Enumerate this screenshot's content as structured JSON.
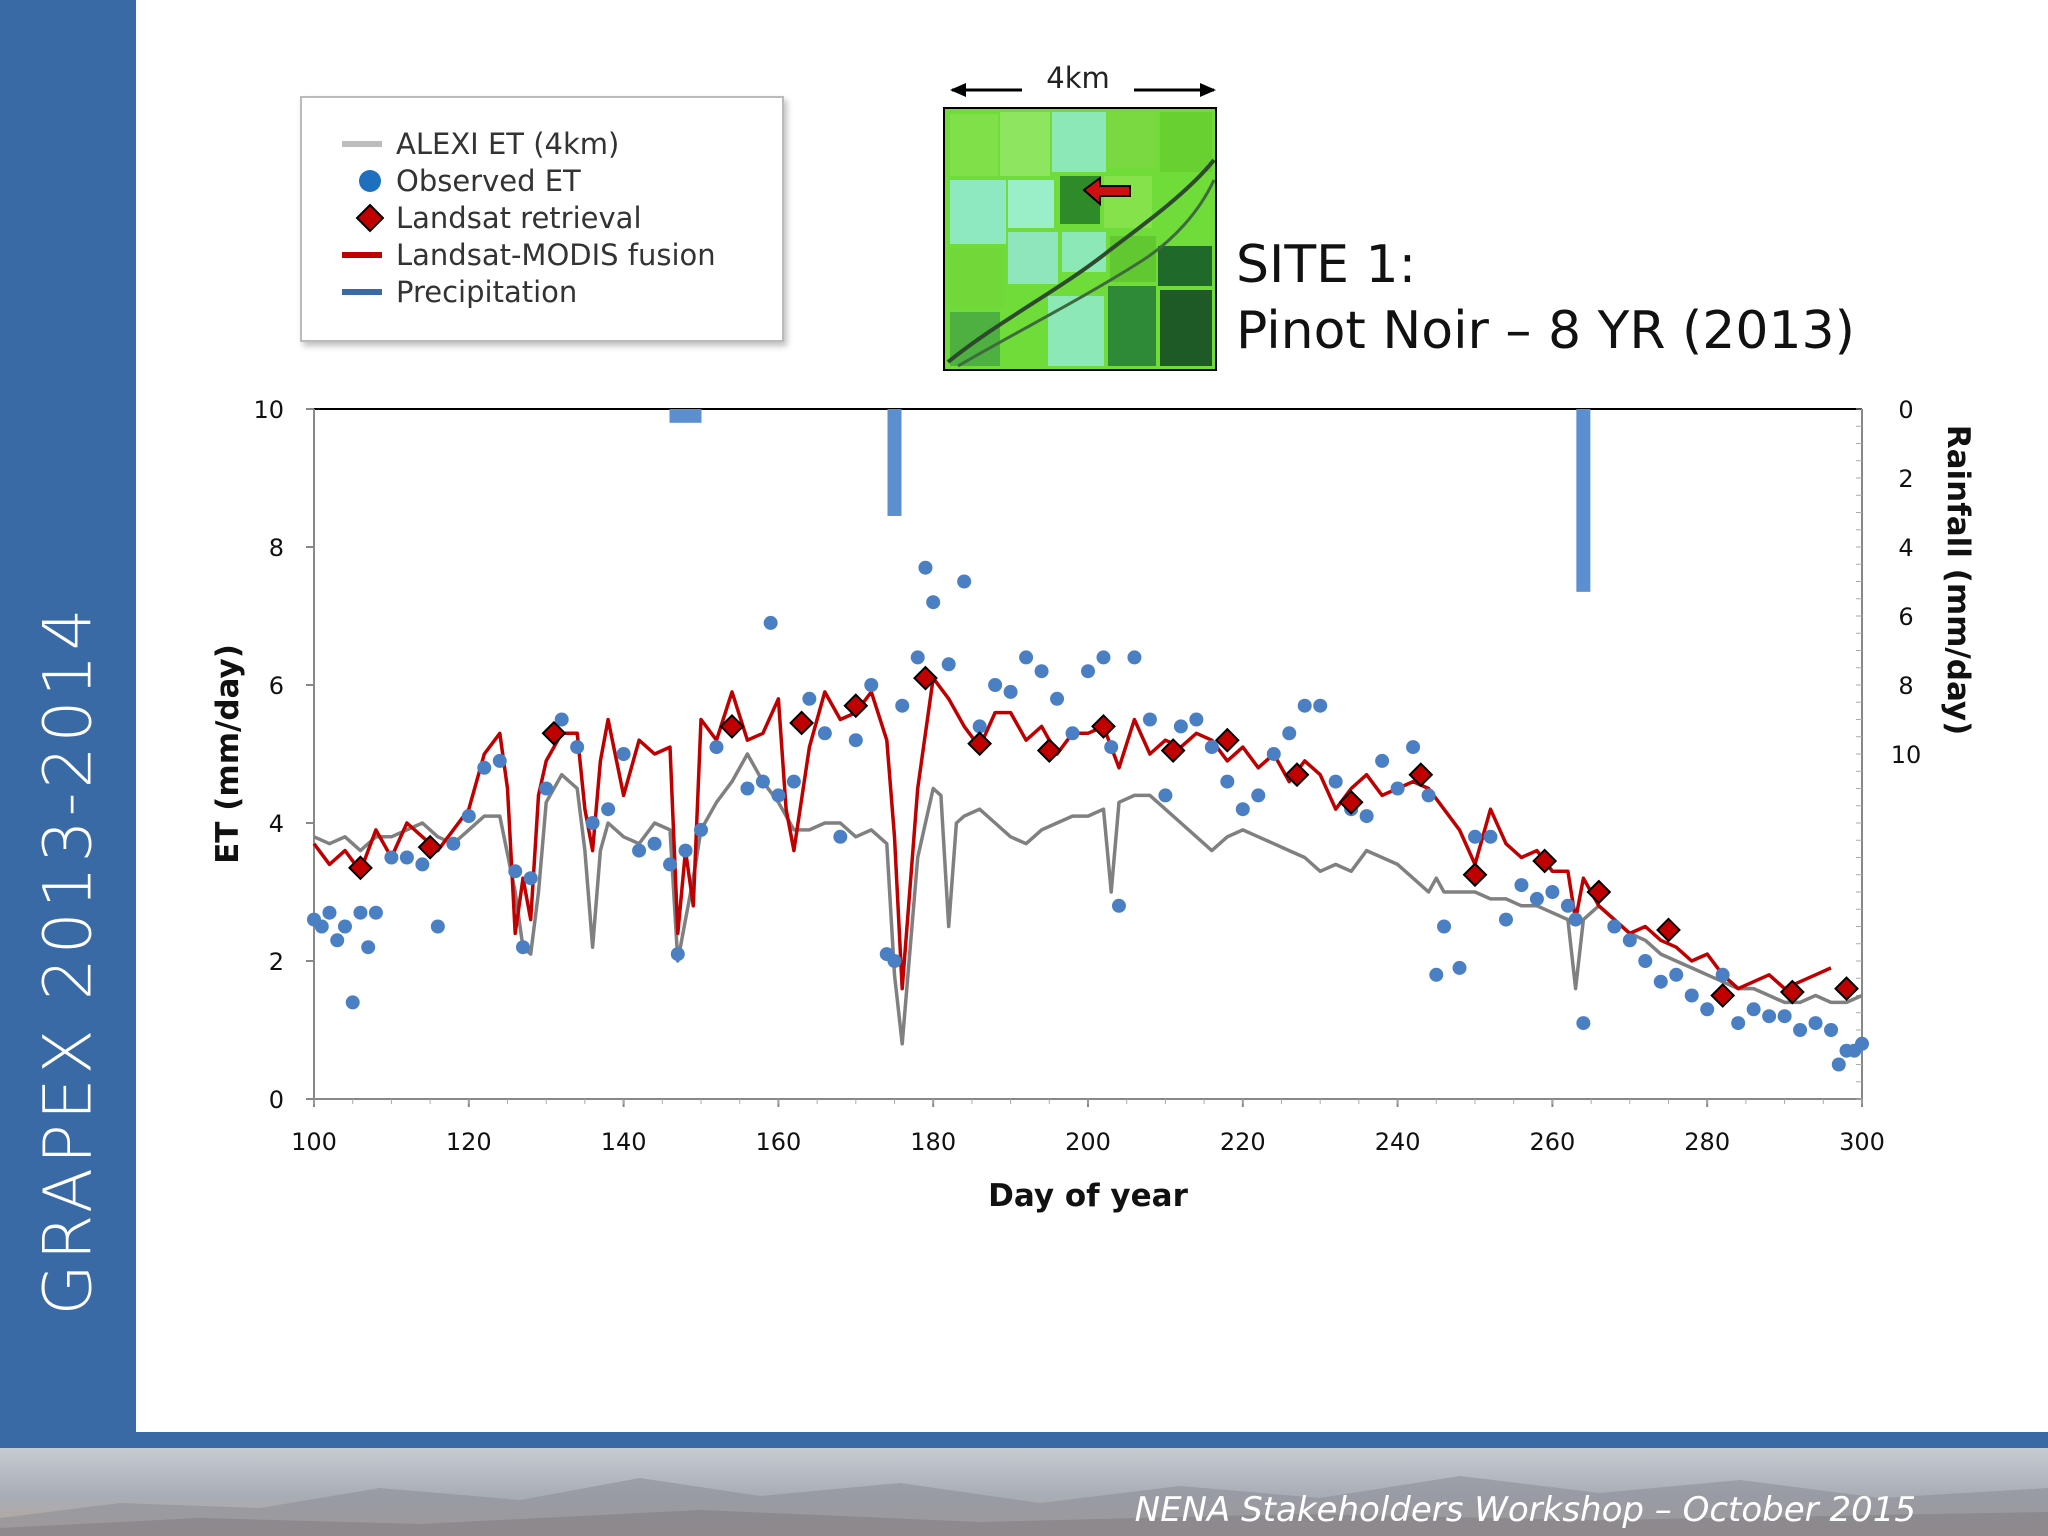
{
  "slide": {
    "sidebar_title": "GRAPEX 2013-2014",
    "footer": "NENA Stakeholders Workshop – October 2015",
    "site_title_line1": "SITE 1:",
    "site_title_line2": "Pinot Noir – 8 YR (2013)",
    "scale_label": "4km"
  },
  "legend": {
    "items": [
      {
        "label": "ALEXI ET (4km)",
        "symbol": "line",
        "color": "#bdbdbd"
      },
      {
        "label": "Observed ET",
        "symbol": "dot",
        "color": "#1f6fbf"
      },
      {
        "label": "Landsat retrieval",
        "symbol": "diamond",
        "color": "#c00000"
      },
      {
        "label": "Landsat-MODIS fusion",
        "symbol": "line",
        "color": "#c00000"
      },
      {
        "label": "Precipitation",
        "symbol": "line",
        "color": "#3a6aa6"
      }
    ]
  },
  "colors": {
    "alexi": "#808080",
    "fusion": "#c00000",
    "observed": "#4a7fc4",
    "diamond": "#c00000",
    "precip": "#5b8fd0"
  },
  "chart_data": {
    "type": "line",
    "xlabel": "Day of year",
    "ylabel": "ET (mm/day)",
    "y2label": "Rainfall (mm/day)",
    "xlim": [
      100,
      300
    ],
    "ylim": [
      0,
      10
    ],
    "y2lim": [
      0,
      20
    ],
    "x_ticks": [
      100,
      120,
      140,
      160,
      180,
      200,
      220,
      240,
      260,
      280,
      300
    ],
    "y_ticks": [
      0,
      2,
      4,
      6,
      8,
      10
    ],
    "y2_ticks": [
      0,
      2,
      4,
      6,
      8,
      10
    ],
    "series": [
      {
        "name": "ALEXI ET (4km)",
        "type": "line",
        "x": [
          100,
          102,
          104,
          106,
          108,
          110,
          112,
          114,
          116,
          118,
          120,
          122,
          124,
          126,
          127,
          128,
          129,
          130,
          132,
          134,
          135,
          136,
          137,
          138,
          140,
          142,
          144,
          146,
          147,
          148,
          149,
          150,
          152,
          154,
          156,
          158,
          160,
          162,
          164,
          166,
          168,
          170,
          172,
          174,
          175,
          176,
          178,
          180,
          181,
          182,
          183,
          184,
          186,
          188,
          190,
          192,
          194,
          196,
          198,
          200,
          202,
          203,
          204,
          206,
          208,
          210,
          212,
          214,
          216,
          218,
          220,
          222,
          224,
          226,
          228,
          230,
          232,
          234,
          236,
          238,
          240,
          242,
          244,
          245,
          246,
          248,
          250,
          252,
          254,
          256,
          258,
          260,
          262,
          263,
          264,
          265,
          266,
          268,
          270,
          272,
          274,
          276,
          278,
          280,
          282,
          284,
          286,
          288,
          290,
          292,
          294,
          296,
          298,
          300
        ],
        "y": [
          3.8,
          3.7,
          3.8,
          3.6,
          3.8,
          3.8,
          3.9,
          4.0,
          3.8,
          3.7,
          3.9,
          4.1,
          4.1,
          3.0,
          2.2,
          2.1,
          3.0,
          4.3,
          4.7,
          4.5,
          3.6,
          2.2,
          3.6,
          4.0,
          3.8,
          3.7,
          4.0,
          3.9,
          2.0,
          2.6,
          3.2,
          3.9,
          4.3,
          4.6,
          5.0,
          4.6,
          4.3,
          3.9,
          3.9,
          4.0,
          4.0,
          3.8,
          3.9,
          3.7,
          1.8,
          0.8,
          3.5,
          4.5,
          4.4,
          2.5,
          4.0,
          4.1,
          4.2,
          4.0,
          3.8,
          3.7,
          3.9,
          4.0,
          4.1,
          4.1,
          4.2,
          3.0,
          4.3,
          4.4,
          4.4,
          4.2,
          4.0,
          3.8,
          3.6,
          3.8,
          3.9,
          3.8,
          3.7,
          3.6,
          3.5,
          3.3,
          3.4,
          3.3,
          3.6,
          3.5,
          3.4,
          3.2,
          3.0,
          3.2,
          3.0,
          3.0,
          3.0,
          2.9,
          2.9,
          2.8,
          2.8,
          2.7,
          2.6,
          1.6,
          2.6,
          2.7,
          2.8,
          2.6,
          2.4,
          2.3,
          2.1,
          2.0,
          1.9,
          1.8,
          1.7,
          1.6,
          1.6,
          1.5,
          1.4,
          1.4,
          1.5,
          1.4,
          1.4,
          1.5
        ]
      },
      {
        "name": "Landsat-MODIS fusion",
        "type": "line",
        "x": [
          100,
          102,
          104,
          106,
          108,
          110,
          112,
          114,
          116,
          118,
          120,
          122,
          124,
          125,
          126,
          127,
          128,
          129,
          130,
          132,
          134,
          135,
          136,
          137,
          138,
          140,
          142,
          144,
          146,
          147,
          148,
          149,
          150,
          152,
          154,
          156,
          158,
          160,
          161,
          162,
          164,
          166,
          168,
          170,
          172,
          174,
          175,
          176,
          178,
          180,
          182,
          184,
          186,
          188,
          190,
          192,
          194,
          196,
          198,
          200,
          202,
          204,
          206,
          208,
          210,
          212,
          214,
          216,
          218,
          220,
          222,
          224,
          226,
          228,
          230,
          232,
          234,
          236,
          238,
          240,
          242,
          244,
          246,
          248,
          250,
          252,
          254,
          256,
          258,
          260,
          262,
          263,
          264,
          265,
          266,
          268,
          270,
          272,
          274,
          276,
          278,
          280,
          282,
          284,
          286,
          288,
          290,
          292,
          294,
          296
        ],
        "y": [
          3.7,
          3.4,
          3.6,
          3.3,
          3.9,
          3.5,
          4.0,
          3.8,
          3.6,
          3.9,
          4.2,
          5.0,
          5.3,
          4.5,
          2.4,
          3.2,
          2.6,
          4.4,
          4.9,
          5.3,
          5.3,
          4.2,
          3.6,
          4.9,
          5.5,
          4.4,
          5.2,
          5.0,
          5.1,
          2.4,
          3.6,
          2.8,
          5.5,
          5.2,
          5.9,
          5.2,
          5.3,
          5.8,
          4.2,
          3.6,
          5.1,
          5.9,
          5.5,
          5.6,
          5.9,
          5.2,
          3.8,
          1.6,
          4.5,
          6.1,
          5.8,
          5.4,
          5.1,
          5.6,
          5.6,
          5.2,
          5.4,
          5.0,
          5.3,
          5.3,
          5.4,
          4.8,
          5.5,
          5.0,
          5.2,
          5.1,
          5.3,
          5.2,
          4.9,
          5.1,
          4.8,
          5.0,
          4.6,
          4.9,
          4.7,
          4.2,
          4.5,
          4.7,
          4.4,
          4.5,
          4.6,
          4.5,
          4.2,
          3.9,
          3.4,
          4.2,
          3.7,
          3.5,
          3.6,
          3.3,
          3.3,
          2.6,
          3.2,
          3.0,
          2.8,
          2.6,
          2.4,
          2.5,
          2.3,
          2.2,
          2.0,
          2.1,
          1.8,
          1.6,
          1.7,
          1.8,
          1.6,
          1.7,
          1.8,
          1.9
        ]
      },
      {
        "name": "Observed ET",
        "type": "scatter",
        "x": [
          100,
          101,
          102,
          103,
          104,
          105,
          106,
          107,
          108,
          110,
          112,
          114,
          116,
          118,
          120,
          122,
          124,
          126,
          127,
          128,
          130,
          132,
          134,
          136,
          138,
          140,
          142,
          144,
          146,
          147,
          148,
          150,
          152,
          154,
          156,
          158,
          159,
          160,
          162,
          164,
          166,
          168,
          170,
          172,
          174,
          175,
          176,
          178,
          179,
          180,
          182,
          184,
          186,
          188,
          190,
          192,
          194,
          196,
          198,
          200,
          202,
          203,
          204,
          206,
          208,
          210,
          212,
          214,
          216,
          218,
          220,
          222,
          224,
          226,
          228,
          230,
          232,
          234,
          236,
          238,
          240,
          242,
          244,
          245,
          246,
          248,
          250,
          252,
          254,
          256,
          258,
          260,
          262,
          263,
          264,
          266,
          268,
          270,
          272,
          274,
          276,
          278,
          280,
          282,
          284,
          286,
          288,
          290,
          292,
          294,
          296,
          297,
          298,
          299,
          300
        ],
        "y": [
          2.6,
          2.5,
          2.7,
          2.3,
          2.5,
          1.4,
          2.7,
          2.2,
          2.7,
          3.5,
          3.5,
          3.4,
          2.5,
          3.7,
          4.1,
          4.8,
          4.9,
          3.3,
          2.2,
          3.2,
          4.5,
          5.5,
          5.1,
          4.0,
          4.2,
          5.0,
          3.6,
          3.7,
          3.4,
          2.1,
          3.6,
          3.9,
          5.1,
          5.4,
          4.5,
          4.6,
          6.9,
          4.4,
          4.6,
          5.8,
          5.3,
          3.8,
          5.2,
          6.0,
          2.1,
          2.0,
          5.7,
          6.4,
          7.7,
          7.2,
          6.3,
          7.5,
          5.4,
          6.0,
          5.9,
          6.4,
          6.2,
          5.8,
          5.3,
          6.2,
          6.4,
          5.1,
          2.8,
          6.4,
          5.5,
          4.4,
          5.4,
          5.5,
          5.1,
          4.6,
          4.2,
          4.4,
          5.0,
          5.3,
          5.7,
          5.7,
          4.6,
          4.2,
          4.1,
          4.9,
          4.5,
          5.1,
          4.4,
          1.8,
          2.5,
          1.9,
          3.8,
          3.8,
          2.6,
          3.1,
          2.9,
          3.0,
          2.8,
          2.6,
          1.1,
          3.0,
          2.5,
          2.3,
          2.0,
          1.7,
          1.8,
          1.5,
          1.3,
          1.8,
          1.1,
          1.3,
          1.2,
          1.2,
          1.0,
          1.1,
          1.0,
          0.5,
          0.7,
          0.7,
          0.8
        ]
      },
      {
        "name": "Landsat retrieval",
        "type": "scatter",
        "x": [
          106,
          115,
          131,
          154,
          163,
          170,
          179,
          186,
          195,
          202,
          211,
          218,
          227,
          234,
          243,
          250,
          259,
          266,
          275,
          282,
          291,
          298
        ],
        "y": [
          3.35,
          3.65,
          5.3,
          5.4,
          5.45,
          5.7,
          6.1,
          5.15,
          5.05,
          5.4,
          5.05,
          5.2,
          4.7,
          4.3,
          4.7,
          3.25,
          3.45,
          3.0,
          2.45,
          1.5,
          1.55,
          1.6
        ]
      },
      {
        "name": "Precipitation",
        "type": "bar",
        "axis": "y2",
        "x": [
          148,
          175,
          264
        ],
        "values": [
          0.4,
          3.1,
          5.3
        ]
      }
    ]
  }
}
